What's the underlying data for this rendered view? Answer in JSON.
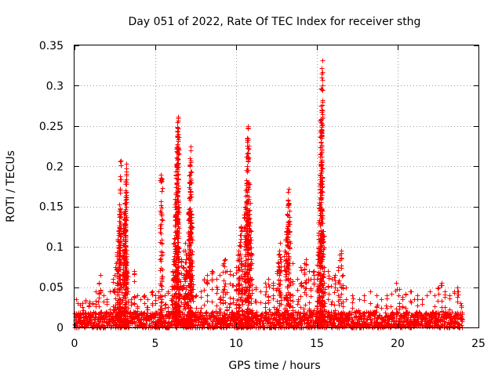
{
  "chart_data": {
    "type": "scatter",
    "title": "Day 051 of 2022, Rate Of TEC Index for receiver sthg",
    "xlabel": "GPS time / hours",
    "ylabel": "ROTI / TECUs",
    "xlim": [
      0,
      25
    ],
    "ylim": [
      0,
      0.35
    ],
    "x_ticks": [
      0,
      5,
      10,
      15,
      20,
      25
    ],
    "x_tick_labels": [
      "0",
      "5",
      "10",
      "15",
      "20",
      "25"
    ],
    "y_ticks": [
      0,
      0.05,
      0.1,
      0.15,
      0.2,
      0.25,
      0.3,
      0.35
    ],
    "y_tick_labels": [
      "0",
      "0.05",
      "0.1",
      "0.15",
      "0.2",
      "0.25",
      "0.3",
      "0.35"
    ],
    "grid": true,
    "marker": "+",
    "series": [
      {
        "name": "ROTI",
        "color": "#ff0000",
        "background_band": {
          "x_start": 0.0,
          "x_end": 24.0,
          "x_step": 0.04,
          "y_min": 0.0,
          "y_max": 0.02
        },
        "points": [
          [
            0.1,
            0.035
          ],
          [
            0.2,
            0.03
          ],
          [
            0.35,
            0.028
          ],
          [
            0.5,
            0.03
          ],
          [
            0.7,
            0.034
          ],
          [
            0.9,
            0.032
          ],
          [
            1.1,
            0.03
          ],
          [
            1.3,
            0.045
          ],
          [
            1.5,
            0.055
          ],
          [
            1.6,
            0.065
          ],
          [
            1.8,
            0.04
          ],
          [
            2.0,
            0.035
          ],
          [
            2.2,
            0.045
          ],
          [
            2.4,
            0.06
          ],
          [
            2.5,
            0.075
          ],
          [
            2.6,
            0.09
          ],
          [
            2.65,
            0.11
          ],
          [
            2.7,
            0.115
          ],
          [
            2.72,
            0.12
          ],
          [
            2.75,
            0.145
          ],
          [
            2.78,
            0.153
          ],
          [
            2.8,
            0.17
          ],
          [
            2.82,
            0.188
          ],
          [
            2.84,
            0.207
          ],
          [
            2.9,
            0.05
          ],
          [
            2.95,
            0.065
          ],
          [
            3.0,
            0.11
          ],
          [
            3.05,
            0.128
          ],
          [
            3.08,
            0.135
          ],
          [
            3.1,
            0.142
          ],
          [
            3.12,
            0.155
          ],
          [
            3.14,
            0.162
          ],
          [
            3.15,
            0.17
          ],
          [
            3.16,
            0.178
          ],
          [
            3.18,
            0.193
          ],
          [
            3.2,
            0.203
          ],
          [
            3.22,
            0.088
          ],
          [
            3.25,
            0.068
          ],
          [
            3.3,
            0.045
          ],
          [
            3.5,
            0.035
          ],
          [
            3.7,
            0.07
          ],
          [
            3.9,
            0.04
          ],
          [
            4.1,
            0.035
          ],
          [
            4.3,
            0.04
          ],
          [
            4.5,
            0.035
          ],
          [
            4.8,
            0.045
          ],
          [
            5.0,
            0.04
          ],
          [
            5.2,
            0.045
          ],
          [
            5.3,
            0.183
          ],
          [
            5.35,
            0.19
          ],
          [
            5.4,
            0.185
          ],
          [
            5.6,
            0.04
          ],
          [
            5.8,
            0.045
          ],
          [
            6.0,
            0.052
          ],
          [
            6.05,
            0.07
          ],
          [
            6.1,
            0.085
          ],
          [
            6.15,
            0.105
          ],
          [
            6.2,
            0.125
          ],
          [
            6.22,
            0.15
          ],
          [
            6.25,
            0.165
          ],
          [
            6.28,
            0.19
          ],
          [
            6.3,
            0.2
          ],
          [
            6.32,
            0.222
          ],
          [
            6.35,
            0.238
          ],
          [
            6.36,
            0.248
          ],
          [
            6.38,
            0.255
          ],
          [
            6.4,
            0.26
          ],
          [
            6.42,
            0.262
          ],
          [
            6.45,
            0.06
          ],
          [
            6.5,
            0.05
          ],
          [
            6.6,
            0.085
          ],
          [
            6.7,
            0.075
          ],
          [
            6.75,
            0.095
          ],
          [
            6.8,
            0.06
          ],
          [
            6.85,
            0.105
          ],
          [
            6.9,
            0.09
          ],
          [
            6.95,
            0.07
          ],
          [
            7.0,
            0.065
          ],
          [
            7.05,
            0.142
          ],
          [
            7.08,
            0.16
          ],
          [
            7.1,
            0.18
          ],
          [
            7.12,
            0.19
          ],
          [
            7.14,
            0.2
          ],
          [
            7.16,
            0.21
          ],
          [
            7.18,
            0.22
          ],
          [
            7.2,
            0.225
          ],
          [
            7.25,
            0.14
          ],
          [
            7.3,
            0.065
          ],
          [
            7.5,
            0.04
          ],
          [
            7.8,
            0.045
          ],
          [
            8.0,
            0.06
          ],
          [
            8.2,
            0.065
          ],
          [
            8.5,
            0.07
          ],
          [
            8.8,
            0.06
          ],
          [
            9.0,
            0.065
          ],
          [
            9.2,
            0.08
          ],
          [
            9.3,
            0.085
          ],
          [
            9.4,
            0.07
          ],
          [
            9.6,
            0.07
          ],
          [
            9.8,
            0.065
          ],
          [
            10.0,
            0.075
          ],
          [
            10.1,
            0.09
          ],
          [
            10.15,
            0.095
          ],
          [
            10.2,
            0.102
          ],
          [
            10.25,
            0.115
          ],
          [
            10.3,
            0.125
          ],
          [
            10.35,
            0.08
          ],
          [
            10.4,
            0.07
          ],
          [
            10.5,
            0.14
          ],
          [
            10.55,
            0.15
          ],
          [
            10.6,
            0.17
          ],
          [
            10.62,
            0.195
          ],
          [
            10.65,
            0.212
          ],
          [
            10.68,
            0.232
          ],
          [
            10.7,
            0.235
          ],
          [
            10.72,
            0.248
          ],
          [
            10.75,
            0.25
          ],
          [
            10.78,
            0.135
          ],
          [
            10.8,
            0.18
          ],
          [
            10.85,
            0.155
          ],
          [
            10.9,
            0.12
          ],
          [
            10.95,
            0.09
          ],
          [
            11.2,
            0.05
          ],
          [
            11.5,
            0.045
          ],
          [
            11.8,
            0.055
          ],
          [
            12.0,
            0.06
          ],
          [
            12.3,
            0.055
          ],
          [
            12.5,
            0.07
          ],
          [
            12.6,
            0.09
          ],
          [
            12.65,
            0.095
          ],
          [
            12.7,
            0.105
          ],
          [
            12.75,
            0.085
          ],
          [
            13.0,
            0.095
          ],
          [
            13.05,
            0.11
          ],
          [
            13.1,
            0.12
          ],
          [
            13.15,
            0.14
          ],
          [
            13.2,
            0.158
          ],
          [
            13.22,
            0.168
          ],
          [
            13.25,
            0.172
          ],
          [
            13.3,
            0.145
          ],
          [
            13.35,
            0.06
          ],
          [
            13.5,
            0.08
          ],
          [
            13.8,
            0.06
          ],
          [
            14.0,
            0.075
          ],
          [
            14.2,
            0.08
          ],
          [
            14.3,
            0.085
          ],
          [
            14.5,
            0.07
          ],
          [
            14.6,
            0.06
          ],
          [
            14.8,
            0.07
          ],
          [
            15.0,
            0.078
          ],
          [
            15.05,
            0.09
          ],
          [
            15.1,
            0.11
          ],
          [
            15.12,
            0.13
          ],
          [
            15.15,
            0.155
          ],
          [
            15.18,
            0.19
          ],
          [
            15.2,
            0.215
          ],
          [
            15.22,
            0.245
          ],
          [
            15.24,
            0.258
          ],
          [
            15.26,
            0.275
          ],
          [
            15.28,
            0.31
          ],
          [
            15.3,
            0.315
          ],
          [
            15.32,
            0.332
          ],
          [
            15.35,
            0.145
          ],
          [
            15.4,
            0.12
          ],
          [
            15.45,
            0.07
          ],
          [
            15.7,
            0.07
          ],
          [
            15.9,
            0.06
          ],
          [
            16.1,
            0.065
          ],
          [
            16.3,
            0.075
          ],
          [
            16.4,
            0.09
          ],
          [
            16.5,
            0.095
          ],
          [
            16.6,
            0.065
          ],
          [
            16.8,
            0.05
          ],
          [
            17.2,
            0.04
          ],
          [
            17.6,
            0.035
          ],
          [
            17.9,
            0.04
          ],
          [
            18.3,
            0.045
          ],
          [
            18.7,
            0.04
          ],
          [
            19.0,
            0.035
          ],
          [
            19.3,
            0.04
          ],
          [
            19.6,
            0.042
          ],
          [
            19.9,
            0.055
          ],
          [
            20.1,
            0.048
          ],
          [
            20.3,
            0.038
          ],
          [
            20.5,
            0.042
          ],
          [
            20.8,
            0.045
          ],
          [
            21.0,
            0.035
          ],
          [
            21.2,
            0.04
          ],
          [
            21.5,
            0.035
          ],
          [
            21.8,
            0.04
          ],
          [
            22.0,
            0.045
          ],
          [
            22.3,
            0.04
          ],
          [
            22.5,
            0.05
          ],
          [
            22.7,
            0.055
          ],
          [
            22.9,
            0.045
          ],
          [
            23.2,
            0.04
          ],
          [
            23.5,
            0.045
          ],
          [
            23.7,
            0.05
          ],
          [
            23.9,
            0.03
          ]
        ]
      }
    ]
  }
}
